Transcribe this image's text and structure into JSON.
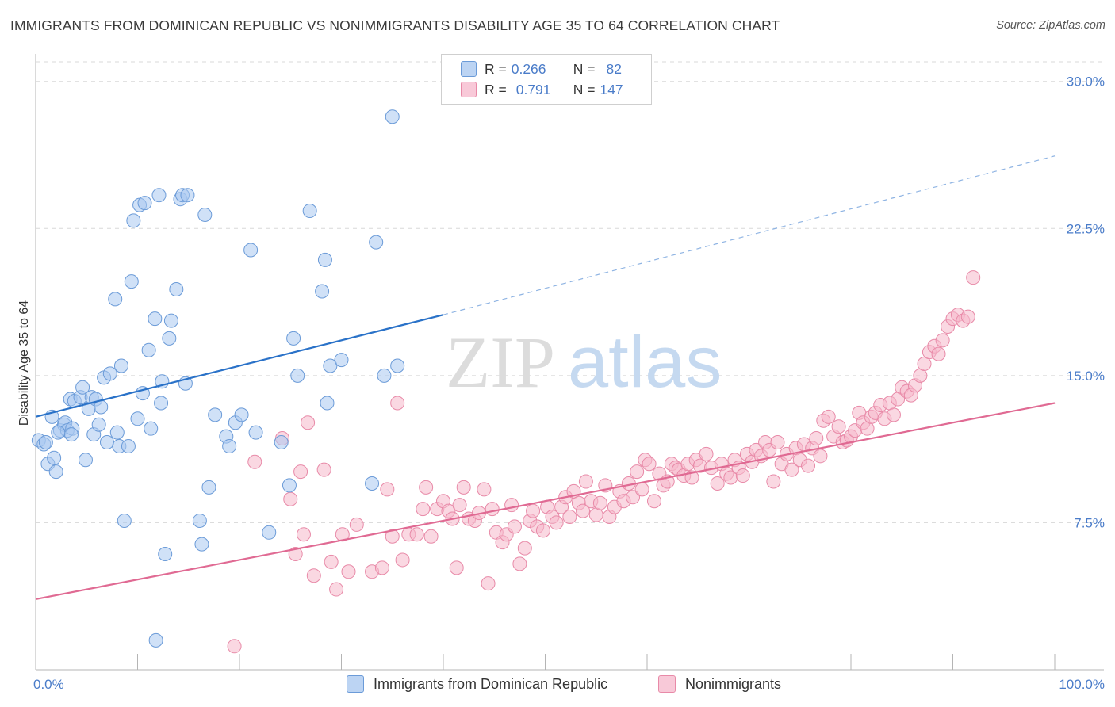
{
  "title": "IMMIGRANTS FROM DOMINICAN REPUBLIC VS NONIMMIGRANTS DISABILITY AGE 35 TO 64 CORRELATION CHART",
  "source": "Source: ZipAtlas.com",
  "watermark": {
    "zip": "ZIP",
    "atlas": "atlas"
  },
  "colors": {
    "blue_fill": "#a9c8f0",
    "blue_stroke": "#6b9bd8",
    "blue_line": "#2a72c8",
    "pink_fill": "#f5b8cb",
    "pink_stroke": "#e88aa8",
    "pink_line": "#e06a93",
    "tick_text": "#4a7cc9",
    "grid": "#d8d8d8"
  },
  "legend": {
    "rows": [
      {
        "r_label": "R =",
        "r_value": "0.266",
        "n_label": "N =",
        "n_value": "82"
      },
      {
        "r_label": "R =",
        "r_value": "0.791",
        "n_label": "N =",
        "n_value": "147"
      }
    ]
  },
  "chart_data": {
    "type": "scatter",
    "title": "IMMIGRANTS FROM DOMINICAN REPUBLIC VS NONIMMIGRANTS DISABILITY AGE 35 TO 64 CORRELATION CHART",
    "xlabel": "",
    "ylabel": "Disability Age 35 to 64",
    "xlim": [
      0,
      100
    ],
    "ylim": [
      0,
      31
    ],
    "x_tick_labels": [
      "0.0%",
      "100.0%"
    ],
    "y_ticks": [
      7.5,
      15.0,
      22.5,
      30.0
    ],
    "y_tick_labels": [
      "7.5%",
      "15.0%",
      "22.5%",
      "30.0%"
    ],
    "grid": "horizontal dashed",
    "legend_position": "bottom",
    "series": [
      {
        "name": "Immigrants from Dominican Republic",
        "color": "#a9c8f0",
        "trend": {
          "x": [
            0,
            40
          ],
          "y": [
            12.9,
            18.1
          ],
          "dashed_extension_to": [
            100,
            26.2
          ]
        },
        "points": [
          [
            0.3,
            11.7
          ],
          [
            0.8,
            11.5
          ],
          [
            1.0,
            11.6
          ],
          [
            1.2,
            10.5
          ],
          [
            1.6,
            12.9
          ],
          [
            1.8,
            10.8
          ],
          [
            2.0,
            10.1
          ],
          [
            2.4,
            12.2
          ],
          [
            2.8,
            12.5
          ],
          [
            2.9,
            12.6
          ],
          [
            3.1,
            12.2
          ],
          [
            3.4,
            13.8
          ],
          [
            3.6,
            12.3
          ],
          [
            3.8,
            13.7
          ],
          [
            4.4,
            13.9
          ],
          [
            4.6,
            14.4
          ],
          [
            4.9,
            10.7
          ],
          [
            5.2,
            13.3
          ],
          [
            5.5,
            13.9
          ],
          [
            5.7,
            12.0
          ],
          [
            5.9,
            13.8
          ],
          [
            6.2,
            12.5
          ],
          [
            6.4,
            13.4
          ],
          [
            6.7,
            14.9
          ],
          [
            7.0,
            11.6
          ],
          [
            7.3,
            15.1
          ],
          [
            7.8,
            18.9
          ],
          [
            8.0,
            12.1
          ],
          [
            8.2,
            11.4
          ],
          [
            8.4,
            15.5
          ],
          [
            8.7,
            7.6
          ],
          [
            9.4,
            19.8
          ],
          [
            9.6,
            22.9
          ],
          [
            10.0,
            12.8
          ],
          [
            10.2,
            23.7
          ],
          [
            10.5,
            14.1
          ],
          [
            10.7,
            23.8
          ],
          [
            11.1,
            16.3
          ],
          [
            11.3,
            12.3
          ],
          [
            11.7,
            17.9
          ],
          [
            11.8,
            1.5
          ],
          [
            12.1,
            24.2
          ],
          [
            12.3,
            13.6
          ],
          [
            12.4,
            14.7
          ],
          [
            12.7,
            5.9
          ],
          [
            13.1,
            16.9
          ],
          [
            13.3,
            17.8
          ],
          [
            13.8,
            19.4
          ],
          [
            14.2,
            24.0
          ],
          [
            14.4,
            24.2
          ],
          [
            14.7,
            14.6
          ],
          [
            14.9,
            24.2
          ],
          [
            16.1,
            7.6
          ],
          [
            16.3,
            6.4
          ],
          [
            16.6,
            23.2
          ],
          [
            17.0,
            9.3
          ],
          [
            17.6,
            13.0
          ],
          [
            18.7,
            11.9
          ],
          [
            19.0,
            11.4
          ],
          [
            19.6,
            12.6
          ],
          [
            20.2,
            13.0
          ],
          [
            21.1,
            21.4
          ],
          [
            21.6,
            12.1
          ],
          [
            22.9,
            7.0
          ],
          [
            24.1,
            11.6
          ],
          [
            24.9,
            9.4
          ],
          [
            25.3,
            16.9
          ],
          [
            25.7,
            15.0
          ],
          [
            26.9,
            23.4
          ],
          [
            28.1,
            19.3
          ],
          [
            28.4,
            20.9
          ],
          [
            28.6,
            13.6
          ],
          [
            28.9,
            15.5
          ],
          [
            30.0,
            15.8
          ],
          [
            33.0,
            9.5
          ],
          [
            33.4,
            21.8
          ],
          [
            34.2,
            15.0
          ],
          [
            35.5,
            15.5
          ],
          [
            35.0,
            28.2
          ],
          [
            9.1,
            11.4
          ],
          [
            3.5,
            12.0
          ],
          [
            2.2,
            12.1
          ]
        ]
      },
      {
        "name": "Nonimmigrants",
        "color": "#f5b8cb",
        "trend": {
          "x": [
            0,
            100
          ],
          "y": [
            3.6,
            13.6
          ]
        },
        "points": [
          [
            19.5,
            1.2
          ],
          [
            21.5,
            10.6
          ],
          [
            24.2,
            11.8
          ],
          [
            25.0,
            8.7
          ],
          [
            25.5,
            5.9
          ],
          [
            26.0,
            10.1
          ],
          [
            26.3,
            6.9
          ],
          [
            26.7,
            12.6
          ],
          [
            27.3,
            4.8
          ],
          [
            28.3,
            10.2
          ],
          [
            29.0,
            5.5
          ],
          [
            29.5,
            4.1
          ],
          [
            30.1,
            6.9
          ],
          [
            30.7,
            5.0
          ],
          [
            31.5,
            7.4
          ],
          [
            33.0,
            5.0
          ],
          [
            34.0,
            5.2
          ],
          [
            34.5,
            9.2
          ],
          [
            35.0,
            6.8
          ],
          [
            35.5,
            13.6
          ],
          [
            36.0,
            5.6
          ],
          [
            36.6,
            6.9
          ],
          [
            37.4,
            6.9
          ],
          [
            38.0,
            8.2
          ],
          [
            38.3,
            9.3
          ],
          [
            38.8,
            6.8
          ],
          [
            39.4,
            8.2
          ],
          [
            40.0,
            8.6
          ],
          [
            40.5,
            8.1
          ],
          [
            40.9,
            7.7
          ],
          [
            41.3,
            5.2
          ],
          [
            41.6,
            8.4
          ],
          [
            42.0,
            9.3
          ],
          [
            42.5,
            7.7
          ],
          [
            43.1,
            7.6
          ],
          [
            43.5,
            8.0
          ],
          [
            44.0,
            9.2
          ],
          [
            44.4,
            4.4
          ],
          [
            44.8,
            8.2
          ],
          [
            45.2,
            7.0
          ],
          [
            45.8,
            6.5
          ],
          [
            46.2,
            6.9
          ],
          [
            46.7,
            8.4
          ],
          [
            47.0,
            7.3
          ],
          [
            47.5,
            5.4
          ],
          [
            48.0,
            6.2
          ],
          [
            48.5,
            7.6
          ],
          [
            48.8,
            8.1
          ],
          [
            49.2,
            7.3
          ],
          [
            49.8,
            7.1
          ],
          [
            50.2,
            8.3
          ],
          [
            50.7,
            7.8
          ],
          [
            51.1,
            7.5
          ],
          [
            51.6,
            8.3
          ],
          [
            52.0,
            8.8
          ],
          [
            52.4,
            7.8
          ],
          [
            52.8,
            9.1
          ],
          [
            53.3,
            8.5
          ],
          [
            53.7,
            8.1
          ],
          [
            54.0,
            9.6
          ],
          [
            54.5,
            8.6
          ],
          [
            55.0,
            7.9
          ],
          [
            55.4,
            8.5
          ],
          [
            55.9,
            9.4
          ],
          [
            56.3,
            7.8
          ],
          [
            56.8,
            8.3
          ],
          [
            57.3,
            9.1
          ],
          [
            57.7,
            8.6
          ],
          [
            58.2,
            9.5
          ],
          [
            58.6,
            8.8
          ],
          [
            59.0,
            10.1
          ],
          [
            59.5,
            9.2
          ],
          [
            59.8,
            10.7
          ],
          [
            60.2,
            10.5
          ],
          [
            60.7,
            8.6
          ],
          [
            61.2,
            10.0
          ],
          [
            61.6,
            9.4
          ],
          [
            62.0,
            9.6
          ],
          [
            62.4,
            10.5
          ],
          [
            62.8,
            10.3
          ],
          [
            63.1,
            10.2
          ],
          [
            63.6,
            9.9
          ],
          [
            64.0,
            10.5
          ],
          [
            64.4,
            9.8
          ],
          [
            64.8,
            10.7
          ],
          [
            65.2,
            10.4
          ],
          [
            65.8,
            11.0
          ],
          [
            66.3,
            10.3
          ],
          [
            66.9,
            9.5
          ],
          [
            67.3,
            10.5
          ],
          [
            67.8,
            10.0
          ],
          [
            68.2,
            9.8
          ],
          [
            68.6,
            10.7
          ],
          [
            69.0,
            10.3
          ],
          [
            69.4,
            9.9
          ],
          [
            69.8,
            11.0
          ],
          [
            70.3,
            10.6
          ],
          [
            70.7,
            11.2
          ],
          [
            71.2,
            10.9
          ],
          [
            71.6,
            11.6
          ],
          [
            72.0,
            11.2
          ],
          [
            72.4,
            9.6
          ],
          [
            72.8,
            11.6
          ],
          [
            73.2,
            10.5
          ],
          [
            73.7,
            11.0
          ],
          [
            74.2,
            10.2
          ],
          [
            74.6,
            11.3
          ],
          [
            75.0,
            10.7
          ],
          [
            75.4,
            11.5
          ],
          [
            75.8,
            10.4
          ],
          [
            76.2,
            11.3
          ],
          [
            76.6,
            11.8
          ],
          [
            77.0,
            10.9
          ],
          [
            77.3,
            12.7
          ],
          [
            77.8,
            12.9
          ],
          [
            78.3,
            11.9
          ],
          [
            78.8,
            12.4
          ],
          [
            79.2,
            11.6
          ],
          [
            79.6,
            11.7
          ],
          [
            80.0,
            11.9
          ],
          [
            80.4,
            12.2
          ],
          [
            80.8,
            13.1
          ],
          [
            81.2,
            12.6
          ],
          [
            81.6,
            12.3
          ],
          [
            82.0,
            12.9
          ],
          [
            82.4,
            13.1
          ],
          [
            82.9,
            13.5
          ],
          [
            83.3,
            12.8
          ],
          [
            83.8,
            13.6
          ],
          [
            84.2,
            13.0
          ],
          [
            84.6,
            13.8
          ],
          [
            85.0,
            14.4
          ],
          [
            85.5,
            14.2
          ],
          [
            85.9,
            14.0
          ],
          [
            86.3,
            14.5
          ],
          [
            86.8,
            15.0
          ],
          [
            87.2,
            15.6
          ],
          [
            87.7,
            16.2
          ],
          [
            88.2,
            16.5
          ],
          [
            88.6,
            16.1
          ],
          [
            89.0,
            16.8
          ],
          [
            89.5,
            17.5
          ],
          [
            90.0,
            17.9
          ],
          [
            90.5,
            18.1
          ],
          [
            91.0,
            17.8
          ],
          [
            91.5,
            18.0
          ],
          [
            92.0,
            20.0
          ]
        ]
      }
    ]
  },
  "bottom_legend": [
    {
      "label": "Immigrants from Dominican Republic"
    },
    {
      "label": "Nonimmigrants"
    }
  ]
}
